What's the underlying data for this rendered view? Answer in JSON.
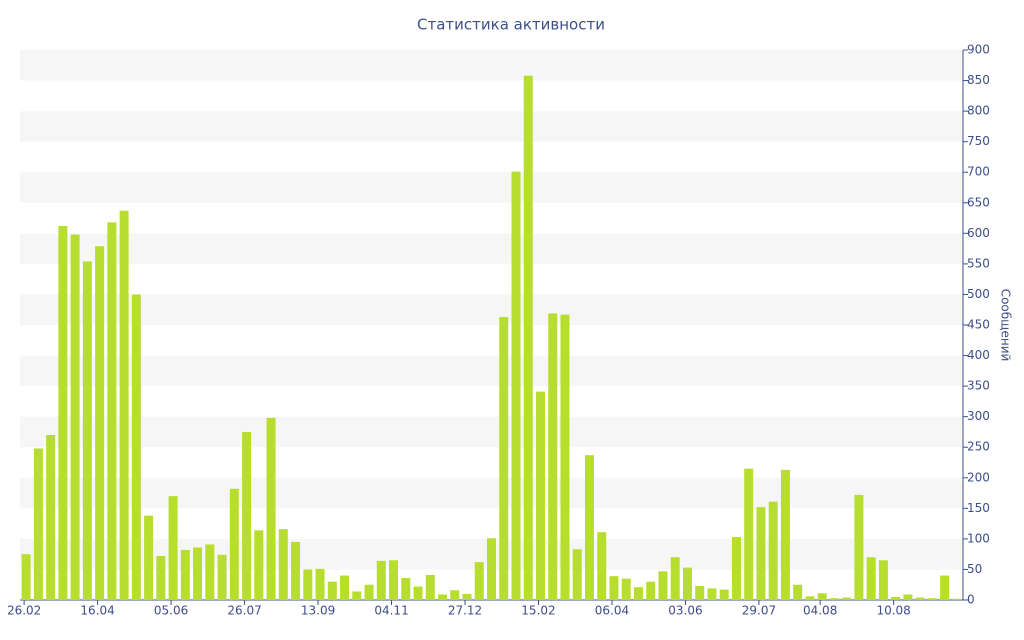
{
  "chart_data": {
    "type": "bar",
    "title": "Статистика активности",
    "y_label": "Сообщений",
    "categories": [
      "26.02",
      null,
      null,
      null,
      null,
      null,
      "16.04",
      null,
      null,
      null,
      null,
      null,
      "05.06",
      null,
      null,
      null,
      null,
      null,
      "26.07",
      null,
      null,
      null,
      null,
      null,
      "13.09",
      null,
      null,
      null,
      null,
      null,
      "04.11",
      null,
      null,
      null,
      null,
      null,
      "27.12",
      null,
      null,
      null,
      null,
      null,
      "15.02",
      null,
      null,
      null,
      null,
      null,
      "06.04",
      null,
      null,
      null,
      null,
      null,
      "03.06",
      null,
      null,
      null,
      null,
      null,
      "29.07",
      null,
      null,
      null,
      null,
      "04.08",
      null,
      null,
      null,
      null,
      null,
      "10.08",
      null,
      null,
      null,
      null,
      null
    ],
    "values": [
      75,
      248,
      270,
      612,
      598,
      554,
      579,
      618,
      637,
      500,
      138,
      72,
      170,
      82,
      86,
      91,
      74,
      182,
      275,
      114,
      298,
      116,
      95,
      50,
      51,
      30,
      40,
      14,
      25,
      64,
      65,
      36,
      22,
      41,
      9,
      16,
      10,
      62,
      101,
      463,
      701,
      858,
      341,
      469,
      467,
      83,
      237,
      111,
      39,
      35,
      21,
      30,
      47,
      70,
      53,
      23,
      19,
      17,
      103,
      215,
      152,
      161,
      213,
      25,
      6,
      11,
      3,
      4,
      172,
      70,
      65,
      5,
      9,
      4,
      3,
      40,
      2
    ],
    "color": "#b7de2e",
    "ylim": [
      0,
      900
    ],
    "yticks": [
      0,
      50,
      100,
      150,
      200,
      250,
      300,
      350,
      400,
      450,
      500,
      550,
      600,
      650,
      700,
      750,
      800,
      850,
      900
    ],
    "grid": true
  }
}
